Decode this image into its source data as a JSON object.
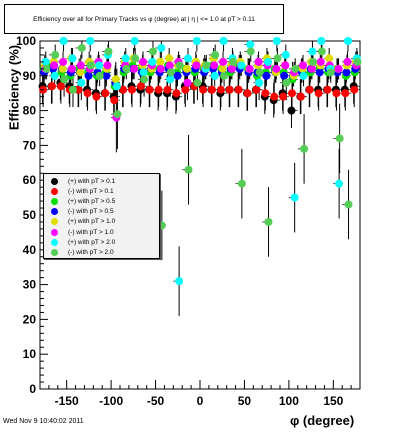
{
  "canvas": {
    "background": "#ffffff"
  },
  "header": {
    "title": "Efficiency over all for Primary Tracks vs φ (degree) at | η | <= 1.0 at pT > 0.11"
  },
  "footer": {
    "timestamp": "Wed Nov  9 10:40:02 2011"
  },
  "chart_data": {
    "type": "scatter",
    "title": "Efficiency over all for Primary Tracks vs φ (degree) at | η | <= 1.0 at pT > 0.11",
    "xlabel": "φ (degree)",
    "ylabel": "Efficiency (%)",
    "xlim": [
      -180,
      180
    ],
    "ylim": [
      0,
      100
    ],
    "x_ticks": [
      -150,
      -100,
      -50,
      0,
      50,
      100,
      150
    ],
    "y_ticks": [
      0,
      10,
      20,
      30,
      40,
      50,
      60,
      70,
      80,
      90,
      100
    ],
    "grid": false,
    "legend_position": "middle-left",
    "series": [
      {
        "name": "(+) with pT > 0.1",
        "color": "#000000",
        "points": [
          [
            -175,
            87
          ],
          [
            -165,
            87
          ],
          [
            -155,
            88
          ],
          [
            -145,
            87
          ],
          [
            -135,
            86
          ],
          [
            -125,
            86
          ],
          [
            -115,
            85
          ],
          [
            -105,
            85
          ],
          [
            -95,
            84
          ],
          [
            -85,
            86
          ],
          [
            -75,
            87
          ],
          [
            -65,
            86
          ],
          [
            -55,
            86
          ],
          [
            -45,
            85
          ],
          [
            -35,
            85
          ],
          [
            -25,
            84
          ],
          [
            -15,
            87
          ],
          [
            -5,
            87
          ],
          [
            5,
            87
          ],
          [
            15,
            86
          ],
          [
            25,
            85
          ],
          [
            35,
            86
          ],
          [
            45,
            86
          ],
          [
            55,
            85
          ],
          [
            65,
            86
          ],
          [
            75,
            84
          ],
          [
            85,
            83
          ],
          [
            95,
            85
          ],
          [
            105,
            80
          ],
          [
            115,
            84
          ],
          [
            125,
            86
          ],
          [
            135,
            86
          ],
          [
            145,
            86
          ],
          [
            155,
            86
          ],
          [
            165,
            86
          ],
          [
            175,
            87
          ]
        ]
      },
      {
        "name": "(-) with pT > 0.1",
        "color": "#ff0000",
        "points": [
          [
            -175,
            86
          ],
          [
            -165,
            87
          ],
          [
            -155,
            87
          ],
          [
            -145,
            86
          ],
          [
            -135,
            86
          ],
          [
            -125,
            85
          ],
          [
            -115,
            84
          ],
          [
            -105,
            85
          ],
          [
            -95,
            83
          ],
          [
            -85,
            86
          ],
          [
            -75,
            86
          ],
          [
            -65,
            87
          ],
          [
            -55,
            86
          ],
          [
            -45,
            86
          ],
          [
            -35,
            86
          ],
          [
            -25,
            85
          ],
          [
            -15,
            86
          ],
          [
            -5,
            87
          ],
          [
            5,
            86
          ],
          [
            15,
            86
          ],
          [
            25,
            86
          ],
          [
            35,
            86
          ],
          [
            45,
            86
          ],
          [
            55,
            85
          ],
          [
            65,
            86
          ],
          [
            75,
            85
          ],
          [
            85,
            84
          ],
          [
            95,
            84
          ],
          [
            105,
            85
          ],
          [
            115,
            84
          ],
          [
            125,
            86
          ],
          [
            135,
            85
          ],
          [
            145,
            86
          ],
          [
            155,
            85
          ],
          [
            165,
            85
          ],
          [
            175,
            86
          ]
        ]
      },
      {
        "name": "(+) with pT > 0.5",
        "color": "#00dd00",
        "points": [
          [
            -175,
            92
          ],
          [
            -165,
            93
          ],
          [
            -155,
            91
          ],
          [
            -145,
            90
          ],
          [
            -135,
            92
          ],
          [
            -125,
            91
          ],
          [
            -115,
            90
          ],
          [
            -105,
            91
          ],
          [
            -95,
            87
          ],
          [
            -85,
            91
          ],
          [
            -75,
            93
          ],
          [
            -65,
            92
          ],
          [
            -55,
            91
          ],
          [
            -45,
            92
          ],
          [
            -35,
            93
          ],
          [
            -25,
            91
          ],
          [
            -15,
            92
          ],
          [
            -5,
            91
          ],
          [
            5,
            92
          ],
          [
            15,
            93
          ],
          [
            25,
            92
          ],
          [
            35,
            91
          ],
          [
            45,
            93
          ],
          [
            55,
            92
          ],
          [
            65,
            90
          ],
          [
            75,
            91
          ],
          [
            85,
            92
          ],
          [
            95,
            91
          ],
          [
            105,
            89
          ],
          [
            115,
            92
          ],
          [
            125,
            91
          ],
          [
            135,
            92
          ],
          [
            145,
            91
          ],
          [
            155,
            92
          ],
          [
            165,
            90
          ],
          [
            175,
            91
          ]
        ]
      },
      {
        "name": "(-) with pT > 0.5",
        "color": "#0000ff",
        "points": [
          [
            -175,
            91
          ],
          [
            -165,
            92
          ],
          [
            -155,
            92
          ],
          [
            -145,
            91
          ],
          [
            -135,
            91
          ],
          [
            -125,
            90
          ],
          [
            -115,
            91
          ],
          [
            -105,
            90
          ],
          [
            -95,
            88
          ],
          [
            -85,
            92
          ],
          [
            -75,
            92
          ],
          [
            -65,
            91
          ],
          [
            -55,
            92
          ],
          [
            -45,
            91
          ],
          [
            -35,
            92
          ],
          [
            -25,
            90
          ],
          [
            -15,
            91
          ],
          [
            -5,
            92
          ],
          [
            5,
            91
          ],
          [
            15,
            92
          ],
          [
            25,
            91
          ],
          [
            35,
            92
          ],
          [
            45,
            92
          ],
          [
            55,
            91
          ],
          [
            65,
            91
          ],
          [
            75,
            90
          ],
          [
            85,
            91
          ],
          [
            95,
            90
          ],
          [
            105,
            90
          ],
          [
            115,
            91
          ],
          [
            125,
            92
          ],
          [
            135,
            91
          ],
          [
            145,
            92
          ],
          [
            155,
            91
          ],
          [
            165,
            91
          ],
          [
            175,
            92
          ]
        ]
      },
      {
        "name": "(+) with pT > 1.0",
        "color": "#dddd00",
        "points": [
          [
            -175,
            93
          ],
          [
            -165,
            94
          ],
          [
            -155,
            92
          ],
          [
            -145,
            95
          ],
          [
            -135,
            91
          ],
          [
            -125,
            94
          ],
          [
            -115,
            93
          ],
          [
            -105,
            92
          ],
          [
            -95,
            89
          ],
          [
            -85,
            94
          ],
          [
            -75,
            95
          ],
          [
            -65,
            93
          ],
          [
            -55,
            92
          ],
          [
            -45,
            94
          ],
          [
            -35,
            95
          ],
          [
            -25,
            93
          ],
          [
            -15,
            92
          ],
          [
            -5,
            94
          ],
          [
            5,
            93
          ],
          [
            15,
            95
          ],
          [
            25,
            92
          ],
          [
            35,
            93
          ],
          [
            45,
            94
          ],
          [
            55,
            92
          ],
          [
            65,
            93
          ],
          [
            75,
            95
          ],
          [
            85,
            91
          ],
          [
            95,
            93
          ],
          [
            105,
            90
          ],
          [
            115,
            92
          ],
          [
            125,
            94
          ],
          [
            135,
            93
          ],
          [
            145,
            95
          ],
          [
            155,
            92
          ],
          [
            165,
            93
          ],
          [
            175,
            94
          ]
        ]
      },
      {
        "name": "(-) with pT > 1.0",
        "color": "#ff00ff",
        "points": [
          [
            -175,
            92
          ],
          [
            -165,
            93
          ],
          [
            -155,
            94
          ],
          [
            -145,
            92
          ],
          [
            -135,
            93
          ],
          [
            -125,
            92
          ],
          [
            -115,
            94
          ],
          [
            -105,
            93
          ],
          [
            -95,
            78
          ],
          [
            -85,
            93
          ],
          [
            -75,
            92
          ],
          [
            -65,
            94
          ],
          [
            -55,
            93
          ],
          [
            -45,
            92
          ],
          [
            -35,
            93
          ],
          [
            -25,
            94
          ],
          [
            -15,
            88
          ],
          [
            -5,
            93
          ],
          [
            5,
            92
          ],
          [
            15,
            93
          ],
          [
            25,
            94
          ],
          [
            35,
            92
          ],
          [
            45,
            93
          ],
          [
            55,
            92
          ],
          [
            65,
            94
          ],
          [
            75,
            93
          ],
          [
            85,
            92
          ],
          [
            95,
            93
          ],
          [
            105,
            91
          ],
          [
            115,
            93
          ],
          [
            125,
            92
          ],
          [
            135,
            94
          ],
          [
            145,
            93
          ],
          [
            155,
            92
          ],
          [
            165,
            94
          ],
          [
            175,
            93
          ]
        ]
      },
      {
        "name": "(+) with pT > 2.0",
        "color": "#00ffff",
        "points": [
          [
            -175,
            94
          ],
          [
            -165,
            90
          ],
          [
            -155,
            100
          ],
          [
            -145,
            95
          ],
          [
            -135,
            88
          ],
          [
            -125,
            100
          ],
          [
            -115,
            93
          ],
          [
            -105,
            96
          ],
          [
            -95,
            87
          ],
          [
            -85,
            95
          ],
          [
            -75,
            100
          ],
          [
            -65,
            91
          ],
          [
            -55,
            94
          ],
          [
            -45,
            98
          ],
          [
            -35,
            89
          ],
          [
            -25,
            31
          ],
          [
            -15,
            95
          ],
          [
            -5,
            100
          ],
          [
            5,
            92
          ],
          [
            15,
            90
          ],
          [
            25,
            100
          ],
          [
            35,
            95
          ],
          [
            45,
            93
          ],
          [
            55,
            99
          ],
          [
            65,
            88
          ],
          [
            75,
            94
          ],
          [
            85,
            100
          ],
          [
            95,
            96
          ],
          [
            105,
            55
          ],
          [
            115,
            90
          ],
          [
            125,
            97
          ],
          [
            135,
            100
          ],
          [
            145,
            92
          ],
          [
            155,
            59
          ],
          [
            165,
            100
          ],
          [
            175,
            95
          ]
        ]
      },
      {
        "name": "(-) with pT > 2.0",
        "color": "#55cc55",
        "points": [
          [
            -175,
            92
          ],
          [
            -165,
            96
          ],
          [
            -155,
            89
          ],
          [
            -145,
            86
          ],
          [
            -135,
            98
          ],
          [
            -125,
            93
          ],
          [
            -115,
            90
          ],
          [
            -105,
            97
          ],
          [
            -95,
            79
          ],
          [
            -85,
            92
          ],
          [
            -75,
            95
          ],
          [
            -65,
            89
          ],
          [
            -55,
            97
          ],
          [
            -45,
            47
          ],
          [
            -35,
            91
          ],
          [
            -25,
            93
          ],
          [
            -15,
            63
          ],
          [
            -5,
            88
          ],
          [
            5,
            93
          ],
          [
            15,
            96
          ],
          [
            25,
            90
          ],
          [
            35,
            94
          ],
          [
            45,
            59
          ],
          [
            55,
            97
          ],
          [
            65,
            91
          ],
          [
            75,
            48
          ],
          [
            85,
            95
          ],
          [
            95,
            88
          ],
          [
            105,
            92
          ],
          [
            115,
            69
          ],
          [
            125,
            94
          ],
          [
            135,
            97
          ],
          [
            145,
            91
          ],
          [
            155,
            72
          ],
          [
            165,
            53
          ],
          [
            175,
            94
          ]
        ]
      }
    ]
  }
}
